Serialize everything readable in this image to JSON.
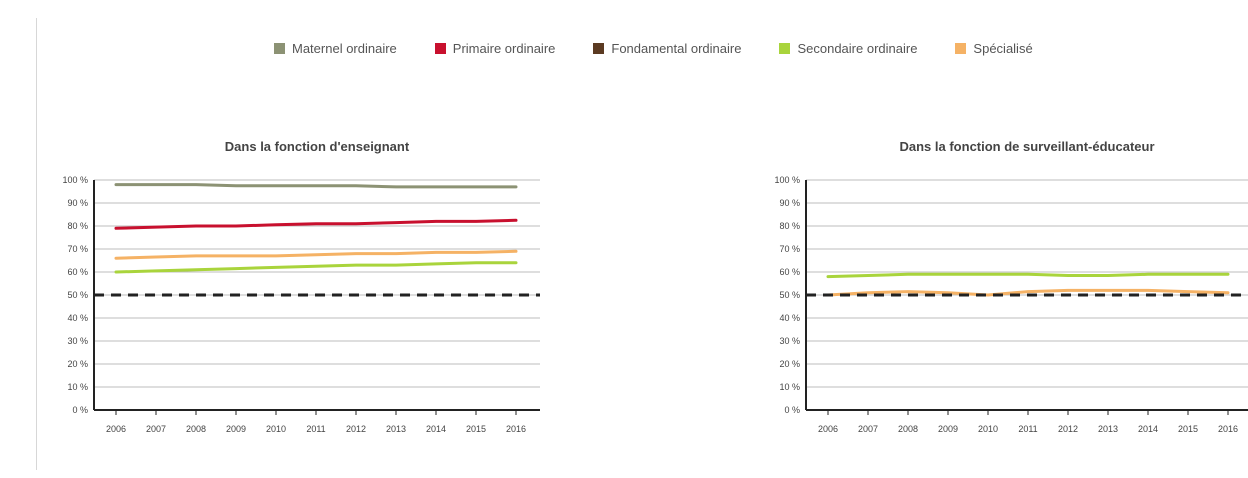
{
  "legend": [
    {
      "name": "Maternel ordinaire",
      "color": "#8c9274"
    },
    {
      "name": "Primaire ordinaire",
      "color": "#c8102e"
    },
    {
      "name": "Fondamental ordinaire",
      "color": "#5b3a22"
    },
    {
      "name": "Secondaire ordinaire",
      "color": "#a9d43c"
    },
    {
      "name": "Spécialisé",
      "color": "#f5b265"
    }
  ],
  "chart_data": [
    {
      "type": "line",
      "title": "Dans la fonction d'enseignant",
      "x": [
        "2006",
        "2007",
        "2008",
        "2009",
        "2010",
        "2011",
        "2012",
        "2013",
        "2014",
        "2015",
        "2016"
      ],
      "yticks": [
        "0 %",
        "10 %",
        "20 %",
        "30 %",
        "40 %",
        "50 %",
        "60 %",
        "70 %",
        "80 %",
        "90 %",
        "100 %"
      ],
      "ylim": [
        0,
        100
      ],
      "reference_line": 50,
      "series": [
        {
          "name": "Maternel ordinaire",
          "color": "#8c9274",
          "values": [
            98,
            98,
            98,
            97.5,
            97.5,
            97.5,
            97.5,
            97,
            97,
            97,
            97
          ]
        },
        {
          "name": "Primaire ordinaire",
          "color": "#c8102e",
          "values": [
            79,
            79.5,
            80,
            80,
            80.5,
            81,
            81,
            81.5,
            82,
            82,
            82.5
          ]
        },
        {
          "name": "Secondaire ordinaire",
          "color": "#a9d43c",
          "values": [
            60,
            60.5,
            61,
            61.5,
            62,
            62.5,
            63,
            63,
            63.5,
            64,
            64
          ]
        },
        {
          "name": "Spécialisé",
          "color": "#f5b265",
          "values": [
            66,
            66.5,
            67,
            67,
            67,
            67.5,
            68,
            68,
            68.5,
            68.5,
            69
          ]
        }
      ]
    },
    {
      "type": "line",
      "title": "Dans la fonction de surveillant-éducateur",
      "x": [
        "2006",
        "2007",
        "2008",
        "2009",
        "2010",
        "2011",
        "2012",
        "2013",
        "2014",
        "2015",
        "2016"
      ],
      "yticks": [
        "0 %",
        "10 %",
        "20 %",
        "30 %",
        "40 %",
        "50 %",
        "60 %",
        "70 %",
        "80 %",
        "90 %",
        "100 %"
      ],
      "ylim": [
        0,
        100
      ],
      "reference_line": 50,
      "series": [
        {
          "name": "Secondaire ordinaire",
          "color": "#a9d43c",
          "values": [
            58,
            58.5,
            59,
            59,
            59,
            59,
            58.5,
            58.5,
            59,
            59,
            59
          ]
        },
        {
          "name": "Spécialisé",
          "color": "#f5b265",
          "values": [
            50,
            51,
            51.5,
            51,
            50,
            51.5,
            52,
            52,
            52,
            51.5,
            51
          ]
        }
      ]
    }
  ]
}
